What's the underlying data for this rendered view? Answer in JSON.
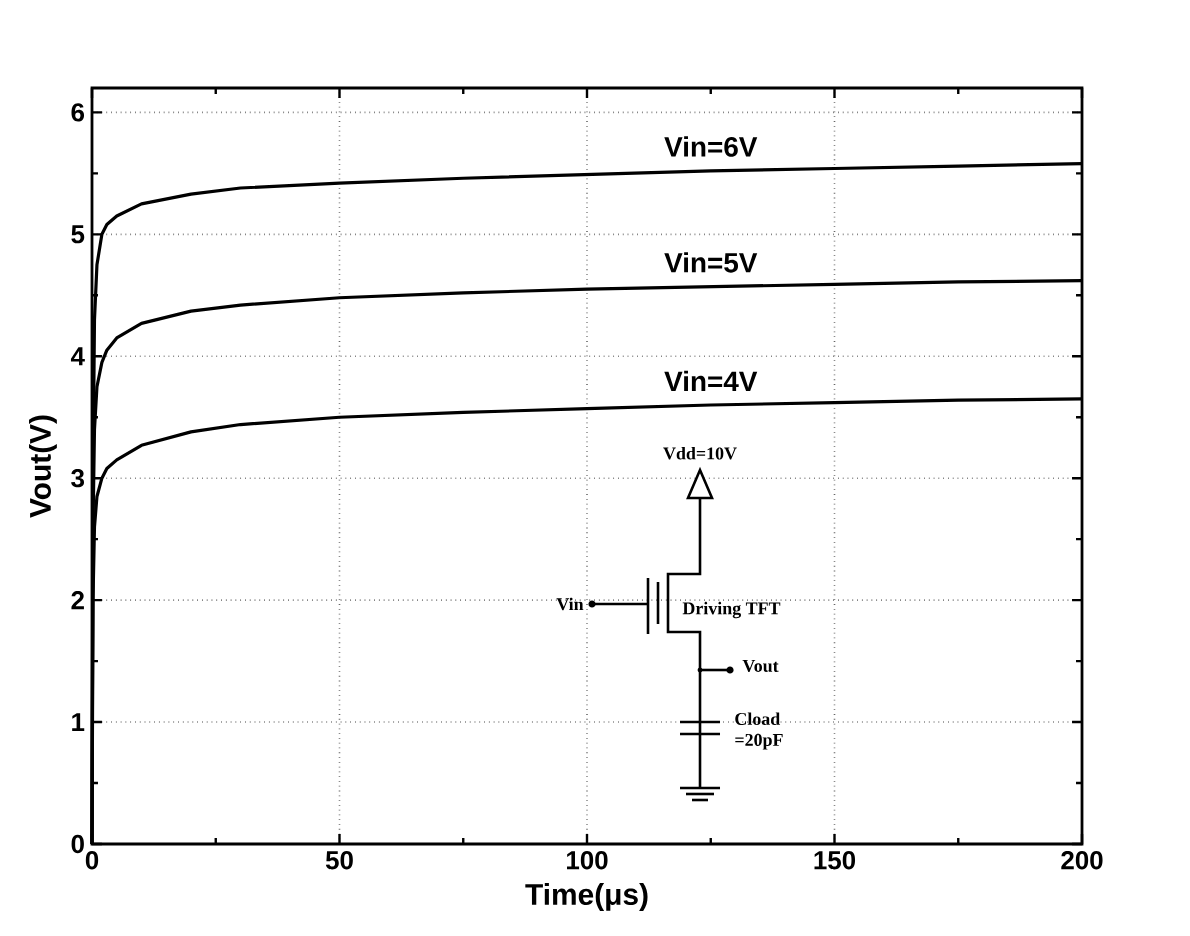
{
  "chart_data": {
    "type": "line",
    "xlabel": "Time(μs)",
    "ylabel": "Vout(V)",
    "xlim": [
      0,
      200
    ],
    "ylim": [
      0,
      6.2
    ],
    "xticks": [
      0,
      50,
      100,
      150,
      200
    ],
    "yticks": [
      0,
      1,
      2,
      3,
      4,
      5,
      6
    ],
    "grid": true,
    "marker": "none",
    "line_style": "solid",
    "x": [
      0,
      0.2,
      0.5,
      1,
      2,
      3,
      5,
      10,
      20,
      30,
      50,
      75,
      100,
      125,
      150,
      175,
      200
    ],
    "series": [
      {
        "name": "Vin=6V",
        "color": "#000000",
        "values": [
          0,
          3.0,
          4.3,
          4.75,
          5.0,
          5.08,
          5.15,
          5.25,
          5.33,
          5.38,
          5.42,
          5.46,
          5.49,
          5.52,
          5.54,
          5.56,
          5.58
        ]
      },
      {
        "name": "Vin=5V",
        "color": "#000000",
        "values": [
          0,
          2.6,
          3.4,
          3.75,
          3.95,
          4.05,
          4.15,
          4.27,
          4.37,
          4.42,
          4.48,
          4.52,
          4.55,
          4.57,
          4.59,
          4.61,
          4.62
        ]
      },
      {
        "name": "Vin=4V",
        "color": "#000000",
        "values": [
          0,
          2.0,
          2.6,
          2.85,
          3.0,
          3.08,
          3.15,
          3.27,
          3.38,
          3.44,
          3.5,
          3.54,
          3.57,
          3.6,
          3.62,
          3.64,
          3.65
        ]
      }
    ],
    "annotations": [
      "Vdd=10V",
      "Vin",
      "Driving TFT",
      "Vout",
      "Cload =20pF"
    ]
  }
}
